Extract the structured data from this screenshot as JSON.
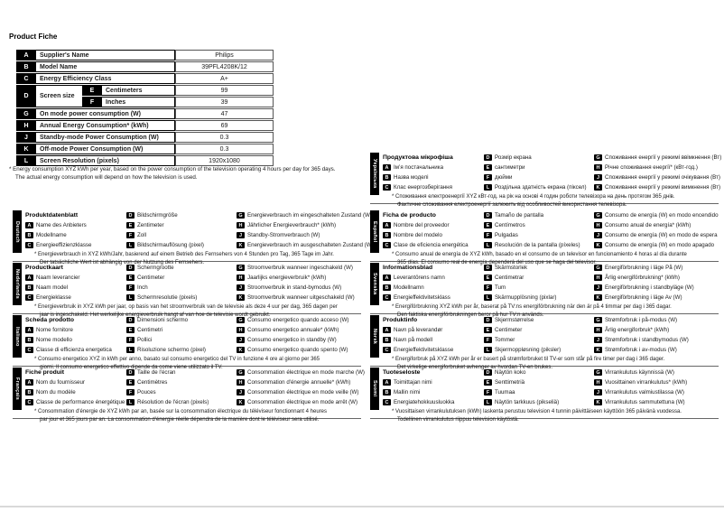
{
  "page": {
    "title": "Product Fiche"
  },
  "colors": {
    "badge_bg": "#000000",
    "text": "#1a1a1a",
    "separator": "#666666",
    "footer_rule": "#d9d9d9"
  },
  "fiche_table": {
    "rows": [
      {
        "key": "A",
        "label": "Supplier's Name",
        "value": "Philips"
      },
      {
        "key": "B",
        "label": "Model Name",
        "value": "39PFL4208K/12"
      },
      {
        "key": "C",
        "label": "Energy Efficiency Class",
        "value": "A+"
      },
      {
        "key": "D",
        "label": "Screen size",
        "subrows": [
          {
            "key": "E",
            "label": "Centimeters",
            "value": "99"
          },
          {
            "key": "F",
            "label": "Inches",
            "value": "39"
          }
        ]
      },
      {
        "key": "G",
        "label": "On mode power consumption (W)",
        "value": "47"
      },
      {
        "key": "H",
        "label": "Annual Energy Consumption* (kWh)",
        "value": "69"
      },
      {
        "key": "J",
        "label": "Standby-mode Power Consumption (W)",
        "value": "0.3"
      },
      {
        "key": "K",
        "label": "Off-mode Power Consumption (W)",
        "value": "0.3"
      },
      {
        "key": "L",
        "label": "Screen Resolution (pixels)",
        "value": "1920x1080"
      }
    ]
  },
  "main_footnote_lines": [
    "* Energy consumption XYZ kWh per year, based on the power consumption of the television operating 4 hours per day for 365 days.",
    "The actual energy consumption will depend on how the television is used."
  ],
  "sections": [
    {
      "id": "deutsch",
      "language": "Deutsch",
      "column": "left",
      "title": "Produktdatenblatt",
      "col1": [
        {
          "key": "A",
          "label": "Name des Anbieters"
        },
        {
          "key": "B",
          "label": "Modellname"
        },
        {
          "key": "C",
          "label": "Energieeffizienzklasse"
        }
      ],
      "col2": [
        {
          "key": "D",
          "label": "Bildschirmgröße"
        },
        {
          "key": "E",
          "label": "Zentimeter"
        },
        {
          "key": "F",
          "label": "Zoll"
        },
        {
          "key": "L",
          "label": "Bildschirmauflösung (pixel)"
        }
      ],
      "col3": [
        {
          "key": "G",
          "label": "Energieverbrauch im eingeschalteten Zustand (W)"
        },
        {
          "key": "H",
          "label": "Jährlicher Energieverbrauch* (kWh)"
        },
        {
          "key": "J",
          "label": "Standby-Stromverbrauch (W)"
        },
        {
          "key": "K",
          "label": "Energieverbrauch im ausgeschalteten Zustand (W)"
        }
      ],
      "footnote_lines": [
        "* Energieverbrauch in XYZ kWh/Jahr, basierend auf einem Betrieb des Fernsehers von 4 Stunden pro Tag, 365 Tage im Jahr.",
        "Der tatsächliche Wert ist abhängig von der Nutzung des Fernsehers."
      ]
    },
    {
      "id": "nederlands",
      "language": "Nederlands",
      "column": "left",
      "title": "Productkaart",
      "col1": [
        {
          "key": "A",
          "label": "Naam leverancier"
        },
        {
          "key": "B",
          "label": "Naam model"
        },
        {
          "key": "C",
          "label": "Energieklasse"
        }
      ],
      "col2": [
        {
          "key": "D",
          "label": "Schermgrootte"
        },
        {
          "key": "E",
          "label": "Centimeter"
        },
        {
          "key": "F",
          "label": "Inch"
        },
        {
          "key": "L",
          "label": "Schermresolutie (pixels)"
        }
      ],
      "col3": [
        {
          "key": "G",
          "label": "Stroomverbruik wanneer ingeschakeld (W)"
        },
        {
          "key": "H",
          "label": "Jaarlijks energieverbruik* (kWh)"
        },
        {
          "key": "J",
          "label": "Stroomverbruik in stand-bymodus (W)"
        },
        {
          "key": "K",
          "label": "Stroomverbruik wanneer uitgeschakeld (W)"
        }
      ],
      "footnote_lines": [
        "* Energieverbruik in XYZ kWh per jaar, op basis van het stroomverbruik van de televisie als deze 4 uur per dag, 365 dagen per",
        "jaar is ingeschakeld. Het werkelijke energieverbruik hangt af van hoe de televisie wordt gebruikt."
      ]
    },
    {
      "id": "italiano",
      "language": "Italiano",
      "column": "left",
      "title": "Scheda prodotto",
      "col1": [
        {
          "key": "A",
          "label": "Nome fornitore"
        },
        {
          "key": "B",
          "label": "Nome modello"
        },
        {
          "key": "C",
          "label": "Classe di efficienza energetica"
        }
      ],
      "col2": [
        {
          "key": "D",
          "label": "Dimensioni schermo"
        },
        {
          "key": "E",
          "label": "Centimetri"
        },
        {
          "key": "F",
          "label": "Pollici"
        },
        {
          "key": "L",
          "label": "Risoluzione schermo (pixel)"
        }
      ],
      "col3": [
        {
          "key": "G",
          "label": "Consumo energetico quando acceso (W)"
        },
        {
          "key": "H",
          "label": "Consumo energetico annuale* (kWh)"
        },
        {
          "key": "J",
          "label": "Consumo energetico in standby (W)"
        },
        {
          "key": "K",
          "label": "Consumo energetico quando spento (W)"
        }
      ],
      "footnote_lines": [
        "* Consumo energetico XYZ in kWh per anno, basato sul consumo energetico del TV in funzione 4 ore al giorno per 365",
        "giorni. Il consumo energetico effettivo dipende da come viene utilizzato il TV."
      ]
    },
    {
      "id": "francais",
      "language": "Français",
      "column": "left",
      "title": "Fiche produit",
      "col1": [
        {
          "key": "A",
          "label": "Nom du fournisseur"
        },
        {
          "key": "B",
          "label": "Nom du modèle"
        },
        {
          "key": "C",
          "label": "Classe de performance énergétique"
        }
      ],
      "col2": [
        {
          "key": "D",
          "label": "Taille de l'écran"
        },
        {
          "key": "E",
          "label": "Centimètres"
        },
        {
          "key": "F",
          "label": "Pouces"
        },
        {
          "key": "L",
          "label": "Résolution de l'écran (pixels)"
        }
      ],
      "col3": [
        {
          "key": "G",
          "label": "Consommation électrique en mode marche (W)"
        },
        {
          "key": "H",
          "label": "Consommation d'énergie annuelle* (kWh)"
        },
        {
          "key": "J",
          "label": "Consommation électrique en mode veille (W)"
        },
        {
          "key": "K",
          "label": "Consommation électrique en mode arrêt (W)"
        }
      ],
      "footnote_lines": [
        "* Consommation d'énergie de XYZ kWh par an, basée sur la consommation électrique du téléviseur fonctionnant 4 heures",
        "par jour et 365 jours par an. La consommation d'énergie réelle dépendra de la manière dont le téléviseur sera utilisé."
      ]
    },
    {
      "id": "ukrainian",
      "language": "Українська",
      "column": "right",
      "title": "Продуктова мікрофіша",
      "col1": [
        {
          "key": "A",
          "label": "Ім’я постачальника"
        },
        {
          "key": "B",
          "label": "Назва моделі"
        },
        {
          "key": "C",
          "label": "Клас енергозберігання"
        }
      ],
      "col2": [
        {
          "key": "D",
          "label": "Розмір екрана"
        },
        {
          "key": "E",
          "label": "сантиметри"
        },
        {
          "key": "F",
          "label": "дюйми"
        },
        {
          "key": "L",
          "label": "Роздільна здатність екрана (піксел)"
        }
      ],
      "col3": [
        {
          "key": "G",
          "label": "Споживання енергії у режимі ввімкнення (Вт)"
        },
        {
          "key": "H",
          "label": "Річне споживання енергії* (кВт-год.)"
        },
        {
          "key": "J",
          "label": "Споживання енергії у режимі очікування (Вт)"
        },
        {
          "key": "K",
          "label": "Споживання енергії у режимі вимкнення (Вт)"
        }
      ],
      "footnote_lines": [
        "* Споживання електроенергії XYZ кВт-год. на рік на основі 4 годин роботи телевізора на день протягом 365 днів.",
        "Фактичне споживання електроенергії залежить від особливостей використання телевізора."
      ]
    },
    {
      "id": "espanol",
      "language": "Español",
      "column": "right",
      "title": "Ficha de producto",
      "col1": [
        {
          "key": "A",
          "label": "Nombre del proveedor"
        },
        {
          "key": "B",
          "label": "Nombre del modelo"
        },
        {
          "key": "C",
          "label": "Clase de eficiencia energética"
        }
      ],
      "col2": [
        {
          "key": "D",
          "label": "Tamaño de pantalla"
        },
        {
          "key": "E",
          "label": "Centímetros"
        },
        {
          "key": "F",
          "label": "Pulgadas"
        },
        {
          "key": "L",
          "label": "Resolución de la pantalla (píxeles)"
        }
      ],
      "col3": [
        {
          "key": "G",
          "label": "Consumo de energía (W) en modo encendido"
        },
        {
          "key": "H",
          "label": "Consumo anual de energía* (kWh)"
        },
        {
          "key": "J",
          "label": "Consumo de energía (W) en modo de espera"
        },
        {
          "key": "K",
          "label": "Consumo de energía (W) en modo apagado"
        }
      ],
      "footnote_lines": [
        "* Consumo anual de energía de XYZ kWh, basado en el consumo de un televisor en funcionamiento 4 horas al día durante",
        "365 días. El consumo real de energía dependerá del uso que se haga del televisor."
      ]
    },
    {
      "id": "svenska",
      "language": "Svenska",
      "column": "right",
      "title": "Informationsblad",
      "col1": [
        {
          "key": "A",
          "label": "Leverantörens namn"
        },
        {
          "key": "B",
          "label": "Modellnamn"
        },
        {
          "key": "C",
          "label": "Energieffektivitetsklass"
        }
      ],
      "col2": [
        {
          "key": "D",
          "label": "Skärmstorlek"
        },
        {
          "key": "E",
          "label": "Centimetrar"
        },
        {
          "key": "F",
          "label": "Tum"
        },
        {
          "key": "L",
          "label": "Skärmupplösning (pixlar)"
        }
      ],
      "col3": [
        {
          "key": "G",
          "label": "Energiförbrukning i läge På (W)"
        },
        {
          "key": "H",
          "label": "Årlig energiförbrukning* (kWh)"
        },
        {
          "key": "J",
          "label": "Energiförbrukning i standbyläge (W)"
        },
        {
          "key": "K",
          "label": "Energiförbrukning i läge Av (W)"
        }
      ],
      "footnote_lines": [
        "* Energiförbrukning XYZ kWh per år, baserat på TV:ns energiförbrukning när den är på 4 timmar per dag i 365 dagar.",
        "Den faktiska energiförbrukningen beror på hur TV:n används."
      ]
    },
    {
      "id": "norsk",
      "language": "Norsk",
      "column": "right",
      "title": "Produktinfo",
      "col1": [
        {
          "key": "A",
          "label": "Navn på leverandør"
        },
        {
          "key": "B",
          "label": "Navn på modell"
        },
        {
          "key": "C",
          "label": "Energieffektivitetsklasse"
        }
      ],
      "col2": [
        {
          "key": "D",
          "label": "Skjermstørrelse"
        },
        {
          "key": "E",
          "label": "Centimeter"
        },
        {
          "key": "F",
          "label": "Tommer"
        },
        {
          "key": "L",
          "label": "Skjermoppløsning (piksler)"
        }
      ],
      "col3": [
        {
          "key": "G",
          "label": "Strømforbruk i på-modus (W)"
        },
        {
          "key": "H",
          "label": "Årlig energiforbruk* (kWh)"
        },
        {
          "key": "J",
          "label": "Strømforbruk i standbymodus (W)"
        },
        {
          "key": "K",
          "label": "Strømforbruk i av-modus (W)"
        }
      ],
      "footnote_lines": [
        "* Energiforbruk på XYZ kWh per år er basert på strømforbruket til TV-er som står på fire timer per dag i 365 dager.",
        "Det virkelige energiforbruket avhenger av hvordan TV-en brukes."
      ]
    },
    {
      "id": "suomi",
      "language": "Suomi",
      "column": "right",
      "title": "Tuoteseloste",
      "col1": [
        {
          "key": "A",
          "label": "Toimittajan nimi"
        },
        {
          "key": "B",
          "label": "Mallin nimi"
        },
        {
          "key": "C",
          "label": "Energiatehokkuusluokka"
        }
      ],
      "col2": [
        {
          "key": "D",
          "label": "Näytön koko"
        },
        {
          "key": "E",
          "label": "Senttimetriä"
        },
        {
          "key": "F",
          "label": "Tuumaa"
        },
        {
          "key": "L",
          "label": "Näytön tarkkuus (pikseliä)"
        }
      ],
      "col3": [
        {
          "key": "G",
          "label": "Virrankulutus käynnissä (W)"
        },
        {
          "key": "H",
          "label": "Vuosittainen virrankulutus* (kWh)"
        },
        {
          "key": "J",
          "label": "Virrankulutus valmiustilassa (W)"
        },
        {
          "key": "K",
          "label": "Virrankulutus sammutettuna (W)"
        }
      ],
      "footnote_lines": [
        "* Vuosittaisen virrankulutuksen (kWh) laskenta perustuu television 4 tunnin päivittäiseen käyttöön 365 päivänä vuodessa.",
        "Todellinen virrankulutus riippuu television käytöstä."
      ]
    }
  ]
}
